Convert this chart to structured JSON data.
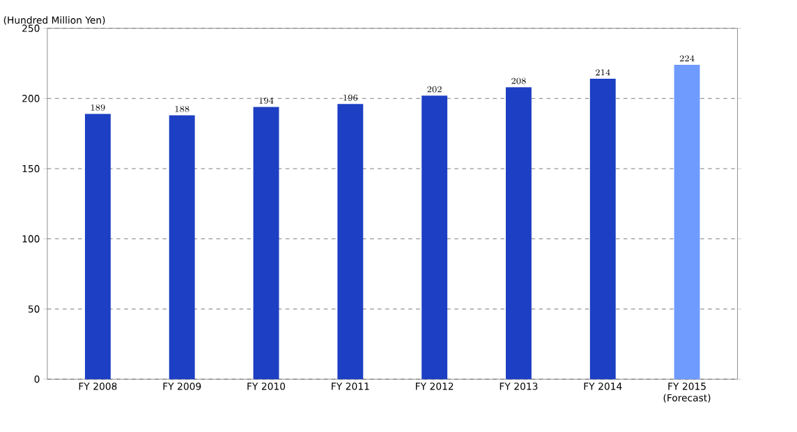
{
  "chart_data": {
    "type": "bar",
    "ylabel": "(Hundred Million Yen)",
    "categories": [
      "FY 2008",
      "FY 2009",
      "FY 2010",
      "FY 2011",
      "FY 2012",
      "FY 2013",
      "FY 2014",
      "FY 2015 (Forecast)"
    ],
    "values": [
      189,
      188,
      194,
      196,
      202,
      208,
      214,
      224
    ],
    "colors": [
      "#1c3fc4",
      "#1c3fc4",
      "#1c3fc4",
      "#1c3fc4",
      "#1c3fc4",
      "#1c3fc4",
      "#1c3fc4",
      "#6f9bff"
    ],
    "ylim": [
      0,
      250
    ],
    "yticks": [
      0,
      50,
      100,
      150,
      200,
      250
    ],
    "grid": "y",
    "data_labels": true
  }
}
